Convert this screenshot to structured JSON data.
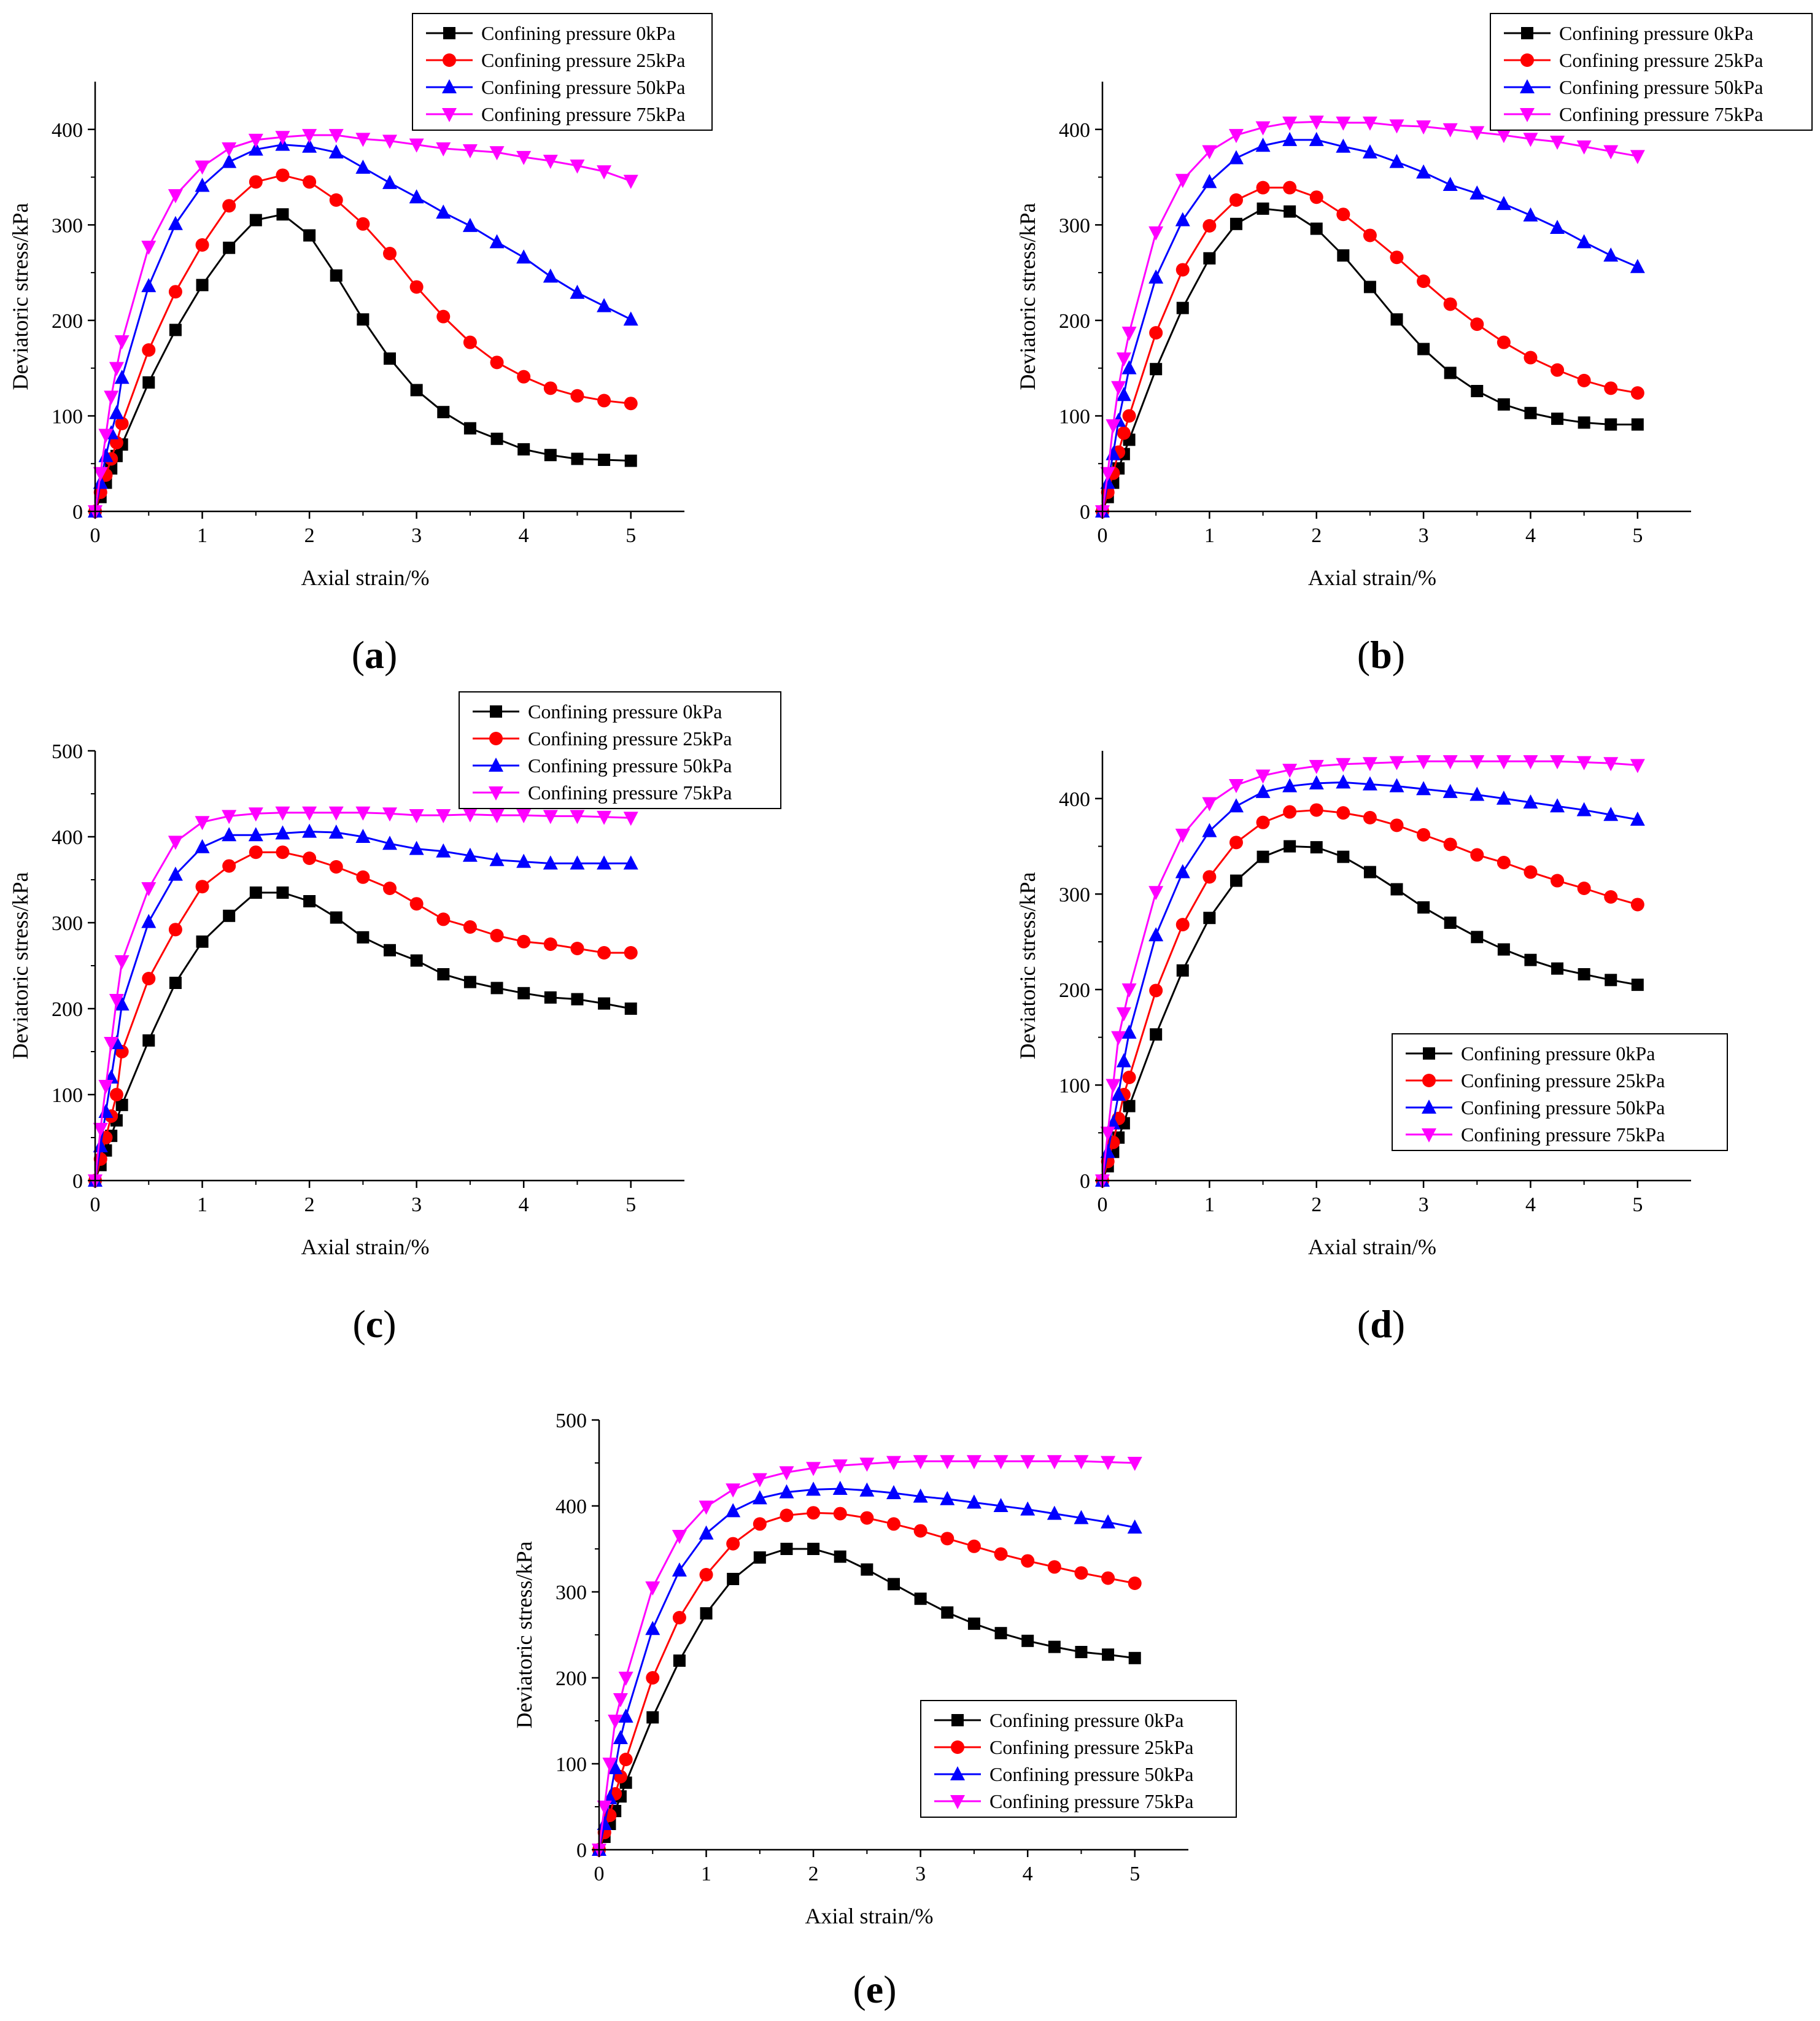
{
  "chart_data": [
    {
      "type": "line",
      "panel_label": "(a)",
      "title": "",
      "xlabel": "Axial strain/%",
      "ylabel": "Deviatoric stress/kPa",
      "xlim": [
        0,
        5.5
      ],
      "ylim": [
        0,
        450
      ],
      "xticks": [
        0,
        1,
        2,
        3,
        4,
        5
      ],
      "yticks": [
        0,
        100,
        200,
        300,
        400
      ],
      "legend_position": "top-right",
      "x": [
        0,
        0.05,
        0.1,
        0.15,
        0.2,
        0.25,
        0.5,
        0.75,
        1.0,
        1.25,
        1.5,
        1.75,
        2.0,
        2.25,
        2.5,
        2.75,
        3.0,
        3.25,
        3.5,
        3.75,
        4.0,
        4.25,
        4.5,
        4.75,
        5.0
      ],
      "series": [
        {
          "name": "Confining pressure 0kPa",
          "color": "#000000",
          "marker": "square",
          "values": [
            0,
            15,
            30,
            45,
            58,
            70,
            135,
            190,
            237,
            276,
            305,
            311,
            289,
            247,
            201,
            160,
            127,
            104,
            87,
            76,
            65,
            59,
            55,
            54,
            53
          ]
        },
        {
          "name": "Confining pressure 25kPa",
          "color": "#ff0000",
          "marker": "circle",
          "values": [
            0,
            20,
            38,
            55,
            72,
            92,
            169,
            230,
            279,
            320,
            345,
            352,
            345,
            326,
            301,
            270,
            235,
            204,
            177,
            156,
            141,
            129,
            121,
            116,
            113
          ]
        },
        {
          "name": "Confining pressure 50kPa",
          "color": "#0000ff",
          "marker": "triangle-up",
          "values": [
            0,
            30,
            58,
            82,
            103,
            140,
            236,
            301,
            341,
            366,
            379,
            384,
            382,
            376,
            360,
            344,
            329,
            313,
            299,
            282,
            266,
            246,
            229,
            215,
            201
          ]
        },
        {
          "name": "Confining pressure 75kPa",
          "color": "#ff00ff",
          "marker": "triangle-down",
          "values": [
            0,
            40,
            80,
            120,
            150,
            178,
            277,
            331,
            361,
            380,
            389,
            392,
            394,
            394,
            390,
            388,
            384,
            380,
            378,
            376,
            371,
            367,
            362,
            356,
            346
          ]
        }
      ]
    },
    {
      "type": "line",
      "panel_label": "(b)",
      "title": "",
      "xlabel": "Axial strain/%",
      "ylabel": "Deviatoric stress/kPa",
      "xlim": [
        0,
        5.5
      ],
      "ylim": [
        0,
        450
      ],
      "xticks": [
        0,
        1,
        2,
        3,
        4,
        5
      ],
      "yticks": [
        0,
        100,
        200,
        300,
        400
      ],
      "legend_position": "top-right",
      "x": [
        0,
        0.05,
        0.1,
        0.15,
        0.2,
        0.25,
        0.5,
        0.75,
        1.0,
        1.25,
        1.5,
        1.75,
        2.0,
        2.25,
        2.5,
        2.75,
        3.0,
        3.25,
        3.5,
        3.75,
        4.0,
        4.25,
        4.5,
        4.75,
        5.0
      ],
      "series": [
        {
          "name": "Confining pressure 0kPa",
          "color": "#000000",
          "marker": "square",
          "values": [
            0,
            15,
            30,
            45,
            60,
            75,
            149,
            213,
            265,
            301,
            317,
            314,
            296,
            268,
            235,
            201,
            170,
            145,
            126,
            112,
            103,
            97,
            93,
            91,
            91
          ]
        },
        {
          "name": "Confining pressure 25kPa",
          "color": "#ff0000",
          "marker": "circle",
          "values": [
            0,
            20,
            40,
            62,
            82,
            100,
            187,
            253,
            299,
            326,
            339,
            339,
            329,
            311,
            289,
            266,
            241,
            217,
            196,
            177,
            161,
            148,
            137,
            129,
            124
          ]
        },
        {
          "name": "Confining pressure 50kPa",
          "color": "#0000ff",
          "marker": "triangle-up",
          "values": [
            0,
            30,
            60,
            95,
            122,
            150,
            245,
            305,
            345,
            370,
            383,
            389,
            389,
            382,
            376,
            366,
            355,
            342,
            333,
            322,
            310,
            297,
            282,
            268,
            256
          ]
        },
        {
          "name": "Confining pressure 75kPa",
          "color": "#ff00ff",
          "marker": "triangle-down",
          "values": [
            0,
            40,
            90,
            130,
            160,
            187,
            292,
            347,
            377,
            394,
            402,
            407,
            408,
            407,
            407,
            404,
            403,
            400,
            397,
            394,
            390,
            387,
            382,
            377,
            372
          ]
        }
      ]
    },
    {
      "type": "line",
      "panel_label": "(c)",
      "title": "",
      "xlabel": "Axial strain/%",
      "ylabel": "Deviatoric stress/kPa",
      "xlim": [
        0,
        5.5
      ],
      "ylim": [
        0,
        500
      ],
      "xticks": [
        0,
        1,
        2,
        3,
        4,
        5
      ],
      "yticks": [
        0,
        100,
        200,
        300,
        400,
        500
      ],
      "legend_position": "top-right",
      "x": [
        0,
        0.05,
        0.1,
        0.15,
        0.2,
        0.25,
        0.5,
        0.75,
        1.0,
        1.25,
        1.5,
        1.75,
        2.0,
        2.25,
        2.5,
        2.75,
        3.0,
        3.25,
        3.5,
        3.75,
        4.0,
        4.25,
        4.5,
        4.75,
        5.0
      ],
      "series": [
        {
          "name": "Confining pressure 0kPa",
          "color": "#000000",
          "marker": "square",
          "values": [
            0,
            18,
            35,
            52,
            70,
            88,
            163,
            230,
            278,
            308,
            335,
            335,
            325,
            306,
            283,
            268,
            256,
            240,
            231,
            224,
            218,
            213,
            211,
            206,
            200
          ]
        },
        {
          "name": "Confining pressure 25kPa",
          "color": "#ff0000",
          "marker": "circle",
          "values": [
            0,
            25,
            50,
            75,
            100,
            150,
            235,
            292,
            342,
            366,
            382,
            382,
            375,
            365,
            353,
            340,
            322,
            304,
            295,
            285,
            278,
            275,
            270,
            265,
            265
          ]
        },
        {
          "name": "Confining pressure 50kPa",
          "color": "#0000ff",
          "marker": "triangle-up",
          "values": [
            0,
            40,
            80,
            120,
            160,
            205,
            301,
            356,
            388,
            402,
            402,
            404,
            406,
            405,
            400,
            392,
            386,
            383,
            378,
            373,
            371,
            369,
            369,
            369,
            369
          ]
        },
        {
          "name": "Confining pressure 75kPa",
          "color": "#ff00ff",
          "marker": "triangle-down",
          "values": [
            0,
            60,
            110,
            160,
            210,
            255,
            340,
            394,
            417,
            424,
            427,
            428,
            428,
            428,
            428,
            427,
            425,
            425,
            426,
            425,
            425,
            424,
            424,
            423,
            422
          ]
        }
      ]
    },
    {
      "type": "line",
      "panel_label": "(d)",
      "title": "",
      "xlabel": "Axial strain/%",
      "ylabel": "Deviatoric stress/kPa",
      "xlim": [
        0,
        5.5
      ],
      "ylim": [
        0,
        450
      ],
      "xticks": [
        0,
        1,
        2,
        3,
        4,
        5
      ],
      "yticks": [
        0,
        100,
        200,
        300,
        400
      ],
      "legend_position": "bottom-right",
      "x": [
        0,
        0.05,
        0.1,
        0.15,
        0.2,
        0.25,
        0.5,
        0.75,
        1.0,
        1.25,
        1.5,
        1.75,
        2.0,
        2.25,
        2.5,
        2.75,
        3.0,
        3.25,
        3.5,
        3.75,
        4.0,
        4.25,
        4.5,
        4.75,
        5.0
      ],
      "series": [
        {
          "name": "Confining pressure 0kPa",
          "color": "#000000",
          "marker": "square",
          "values": [
            0,
            15,
            30,
            45,
            60,
            78,
            153,
            220,
            275,
            314,
            339,
            350,
            349,
            339,
            323,
            305,
            286,
            270,
            255,
            242,
            231,
            222,
            216,
            210,
            205
          ]
        },
        {
          "name": "Confining pressure 25kPa",
          "color": "#ff0000",
          "marker": "circle",
          "values": [
            0,
            20,
            40,
            65,
            90,
            108,
            199,
            268,
            318,
            354,
            375,
            386,
            388,
            385,
            380,
            372,
            362,
            352,
            341,
            333,
            323,
            314,
            306,
            297,
            289
          ]
        },
        {
          "name": "Confining pressure 50kPa",
          "color": "#0000ff",
          "marker": "triangle-up",
          "values": [
            0,
            30,
            60,
            90,
            125,
            155,
            257,
            323,
            366,
            392,
            407,
            413,
            416,
            417,
            415,
            413,
            410,
            407,
            404,
            400,
            396,
            392,
            388,
            383,
            378
          ]
        },
        {
          "name": "Confining pressure 75kPa",
          "color": "#ff00ff",
          "marker": "triangle-down",
          "values": [
            0,
            50,
            100,
            150,
            175,
            200,
            302,
            362,
            395,
            414,
            424,
            430,
            434,
            436,
            437,
            438,
            439,
            439,
            439,
            439,
            439,
            439,
            438,
            437,
            435
          ]
        }
      ]
    },
    {
      "type": "line",
      "panel_label": "(e)",
      "title": "",
      "xlabel": "Axial strain/%",
      "ylabel": "Deviatoric stress/kPa",
      "xlim": [
        0,
        5.5
      ],
      "ylim": [
        0,
        500
      ],
      "xticks": [
        0,
        1,
        2,
        3,
        4,
        5
      ],
      "yticks": [
        0,
        100,
        200,
        300,
        400,
        500
      ],
      "legend_position": "bottom-right",
      "x": [
        0,
        0.05,
        0.1,
        0.15,
        0.2,
        0.25,
        0.5,
        0.75,
        1.0,
        1.25,
        1.5,
        1.75,
        2.0,
        2.25,
        2.5,
        2.75,
        3.0,
        3.25,
        3.5,
        3.75,
        4.0,
        4.25,
        4.5,
        4.75,
        5.0
      ],
      "series": [
        {
          "name": "Confining pressure 0kPa",
          "color": "#000000",
          "marker": "square",
          "values": [
            0,
            15,
            30,
            45,
            62,
            78,
            154,
            220,
            275,
            315,
            340,
            350,
            350,
            341,
            326,
            309,
            292,
            276,
            263,
            252,
            243,
            236,
            230,
            227,
            223
          ]
        },
        {
          "name": "Confining pressure 25kPa",
          "color": "#ff0000",
          "marker": "circle",
          "values": [
            0,
            20,
            40,
            65,
            85,
            105,
            200,
            270,
            320,
            356,
            379,
            389,
            392,
            391,
            386,
            379,
            371,
            362,
            353,
            344,
            336,
            329,
            322,
            316,
            310
          ]
        },
        {
          "name": "Confining pressure 50kPa",
          "color": "#0000ff",
          "marker": "triangle-up",
          "values": [
            0,
            30,
            60,
            95,
            130,
            155,
            257,
            325,
            368,
            394,
            409,
            416,
            419,
            420,
            418,
            415,
            411,
            408,
            404,
            400,
            396,
            391,
            386,
            381,
            375
          ]
        },
        {
          "name": "Confining pressure 75kPa",
          "color": "#ff00ff",
          "marker": "triangle-down",
          "values": [
            0,
            50,
            100,
            150,
            175,
            200,
            305,
            365,
            399,
            419,
            431,
            439,
            444,
            447,
            449,
            451,
            452,
            452,
            452,
            452,
            452,
            452,
            452,
            451,
            450
          ]
        }
      ]
    }
  ]
}
